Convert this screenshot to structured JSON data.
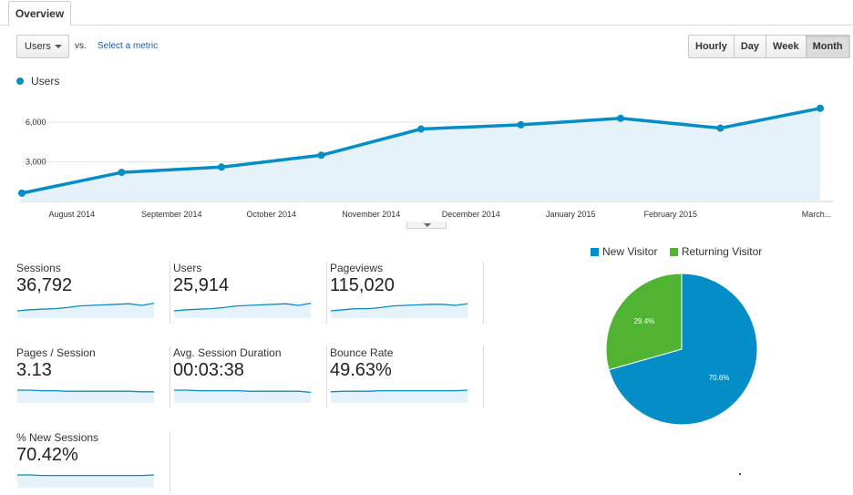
{
  "tab": {
    "label": "Overview"
  },
  "controls": {
    "metric_select": "Users",
    "vs_label": "vs.",
    "select_metric_link": "Select a metric",
    "granularity": [
      "Hourly",
      "Day",
      "Week",
      "Month"
    ],
    "granularity_active": "Month"
  },
  "chart_data": {
    "type": "area",
    "series": [
      {
        "name": "Users",
        "color": "#058dc7",
        "values": [
          630,
          2200,
          2600,
          3500,
          5480,
          5800,
          6290,
          5550,
          7050
        ]
      }
    ],
    "x_labels": [
      "August 2014",
      "September 2014",
      "October 2014",
      "November 2014",
      "December 2014",
      "January 2015",
      "February 2015",
      "March..."
    ],
    "y_ticks": [
      "6,000",
      "3,000"
    ],
    "y_tick_values": [
      6000,
      3000
    ],
    "ylim": [
      0,
      8000
    ],
    "legend": "top-left",
    "grid": true
  },
  "metrics": [
    {
      "label": "Sessions",
      "value": "36,792",
      "trend": [
        40,
        42,
        43,
        44,
        46,
        49,
        50,
        51,
        52,
        53,
        50,
        54
      ]
    },
    {
      "label": "Users",
      "value": "25,914",
      "trend": [
        40,
        42,
        43,
        44,
        46,
        49,
        50,
        51,
        52,
        53,
        50,
        54
      ]
    },
    {
      "label": "Pageviews",
      "value": "115,020",
      "trend": [
        40,
        42,
        44,
        44,
        46,
        49,
        50,
        51,
        52,
        52,
        50,
        53
      ]
    },
    {
      "label": "Pages / Session",
      "value": "3.13",
      "trend": [
        50,
        50,
        49,
        49,
        48,
        48,
        48,
        48,
        48,
        48,
        47,
        47
      ]
    },
    {
      "label": "Avg. Session Duration",
      "value": "00:03:38",
      "trend": [
        50,
        50,
        49,
        49,
        49,
        49,
        48,
        48,
        48,
        48,
        48,
        46
      ]
    },
    {
      "label": "Bounce Rate",
      "value": "49.63%",
      "trend": [
        47,
        48,
        48,
        48,
        49,
        49,
        49,
        49,
        49,
        49,
        49,
        50
      ]
    },
    {
      "label": "% New Sessions",
      "value": "70.42%",
      "trend": [
        50,
        50,
        49,
        49,
        49,
        49,
        49,
        49,
        49,
        49,
        49,
        50
      ]
    }
  ],
  "pie": {
    "legend": [
      {
        "name": "New Visitor",
        "color": "#058dc7"
      },
      {
        "name": "Returning Visitor",
        "color": "#50b432"
      }
    ],
    "slices": [
      {
        "name": "New Visitor",
        "value": 70.6,
        "label": "70.6%",
        "color": "#058dc7"
      },
      {
        "name": "Returning Visitor",
        "value": 29.4,
        "label": "29.4%",
        "color": "#50b432"
      }
    ]
  }
}
